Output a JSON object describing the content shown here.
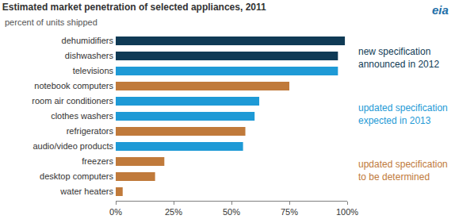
{
  "chart_data": {
    "type": "bar",
    "orientation": "horizontal",
    "title": "Estimated market penetration of selected appliances, 2011",
    "subtitle": "percent of units shipped",
    "categories": [
      "dehumidifiers",
      "dishwashers",
      "televisions",
      "notebook computers",
      "room air conditioners",
      "clothes washers",
      "refrigerators",
      "audio/video products",
      "freezers",
      "desktop computers",
      "water heaters"
    ],
    "series": [
      {
        "name": "new specification announced in 2012",
        "color": "#0f3a55",
        "values": [
          99,
          96,
          null,
          null,
          null,
          null,
          null,
          null,
          null,
          null,
          null
        ]
      },
      {
        "name": "updated specification expected in 2013",
        "color": "#1e9ad6",
        "values": [
          null,
          null,
          96,
          null,
          62,
          60,
          null,
          55,
          null,
          null,
          null
        ]
      },
      {
        "name": "updated specification to be determined",
        "color": "#c07a3b",
        "values": [
          null,
          null,
          null,
          75,
          null,
          null,
          56,
          null,
          21,
          17,
          3
        ]
      }
    ],
    "xlim": [
      0,
      100
    ],
    "xticks": [
      {
        "value": 0,
        "label": "0%"
      },
      {
        "value": 25,
        "label": "25%"
      },
      {
        "value": 50,
        "label": "50%"
      },
      {
        "value": 75,
        "label": "75%"
      },
      {
        "value": 100,
        "label": "100%"
      }
    ],
    "grid": false,
    "annotations": [
      {
        "text": "eia"
      }
    ]
  }
}
